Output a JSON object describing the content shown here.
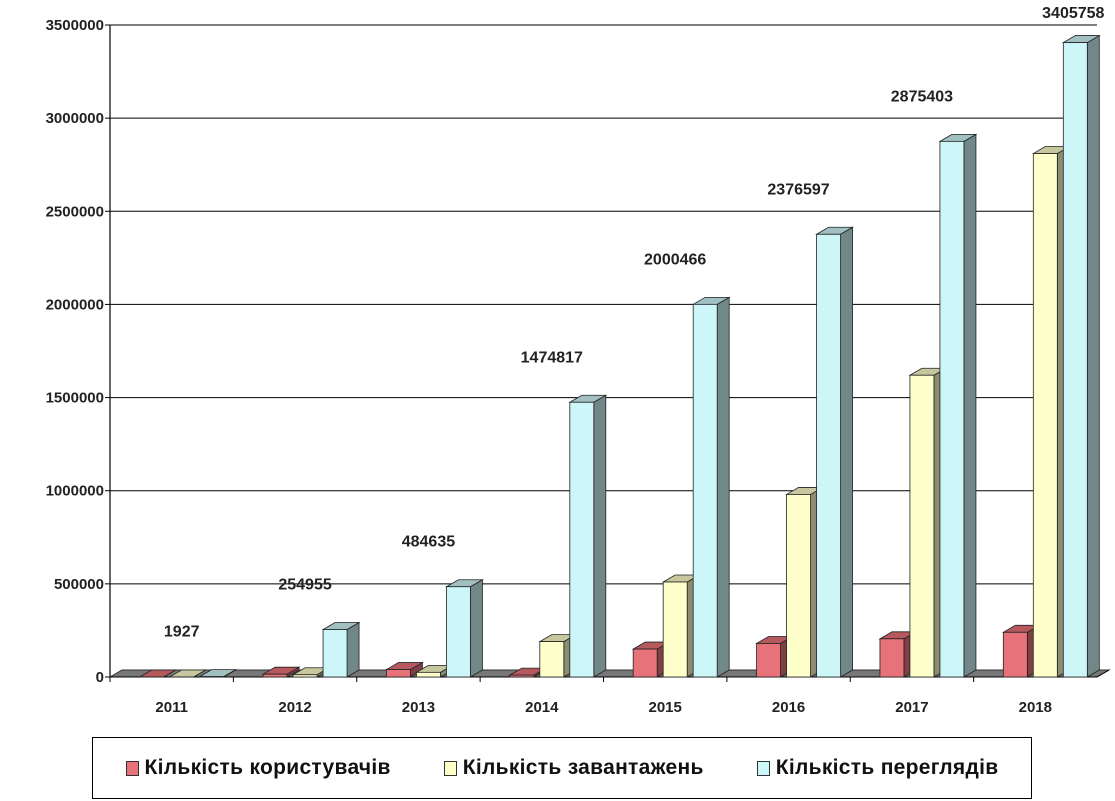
{
  "chart_data": {
    "type": "bar",
    "title": "",
    "xlabel": "",
    "ylabel": "",
    "ylim": [
      0,
      3500000
    ],
    "yticks": [
      0,
      500000,
      1000000,
      1500000,
      2000000,
      2500000,
      3000000,
      3500000
    ],
    "ytick_labels": [
      "0",
      "500000",
      "1000000",
      "1500000",
      "2000000",
      "2500000",
      "3000000",
      "3500000"
    ],
    "grid": true,
    "style": "3d-clustered",
    "legend_position": "bottom",
    "categories": [
      "2011",
      "2012",
      "2013",
      "2014",
      "2015",
      "2016",
      "2017",
      "2018"
    ],
    "series": [
      {
        "name": "Кількість користувачів",
        "color": "#e8727a",
        "values": [
          100,
          15000,
          40000,
          10000,
          150000,
          180000,
          205000,
          240000
        ]
      },
      {
        "name": "Кількість завантажень",
        "color": "#ffffcc",
        "values": [
          200,
          12000,
          25000,
          190000,
          510000,
          980000,
          1620000,
          2810000
        ]
      },
      {
        "name": "Кількість переглядів",
        "color": "#cdf6f8",
        "values": [
          1927,
          254955,
          484635,
          1474817,
          2000466,
          2376597,
          2875403,
          3405758
        ]
      }
    ],
    "data_labels": [
      "1927",
      "254955",
      "484635",
      "1474817",
      "2000466",
      "2376597",
      "2875403",
      "3405758"
    ]
  },
  "legend": {
    "items": [
      {
        "label": "Кількість користувачів",
        "color": "#e8727a"
      },
      {
        "label": "Кількість завантажень",
        "color": "#ffffcc"
      },
      {
        "label": "Кількість переглядів",
        "color": "#cdf6f8"
      }
    ]
  }
}
